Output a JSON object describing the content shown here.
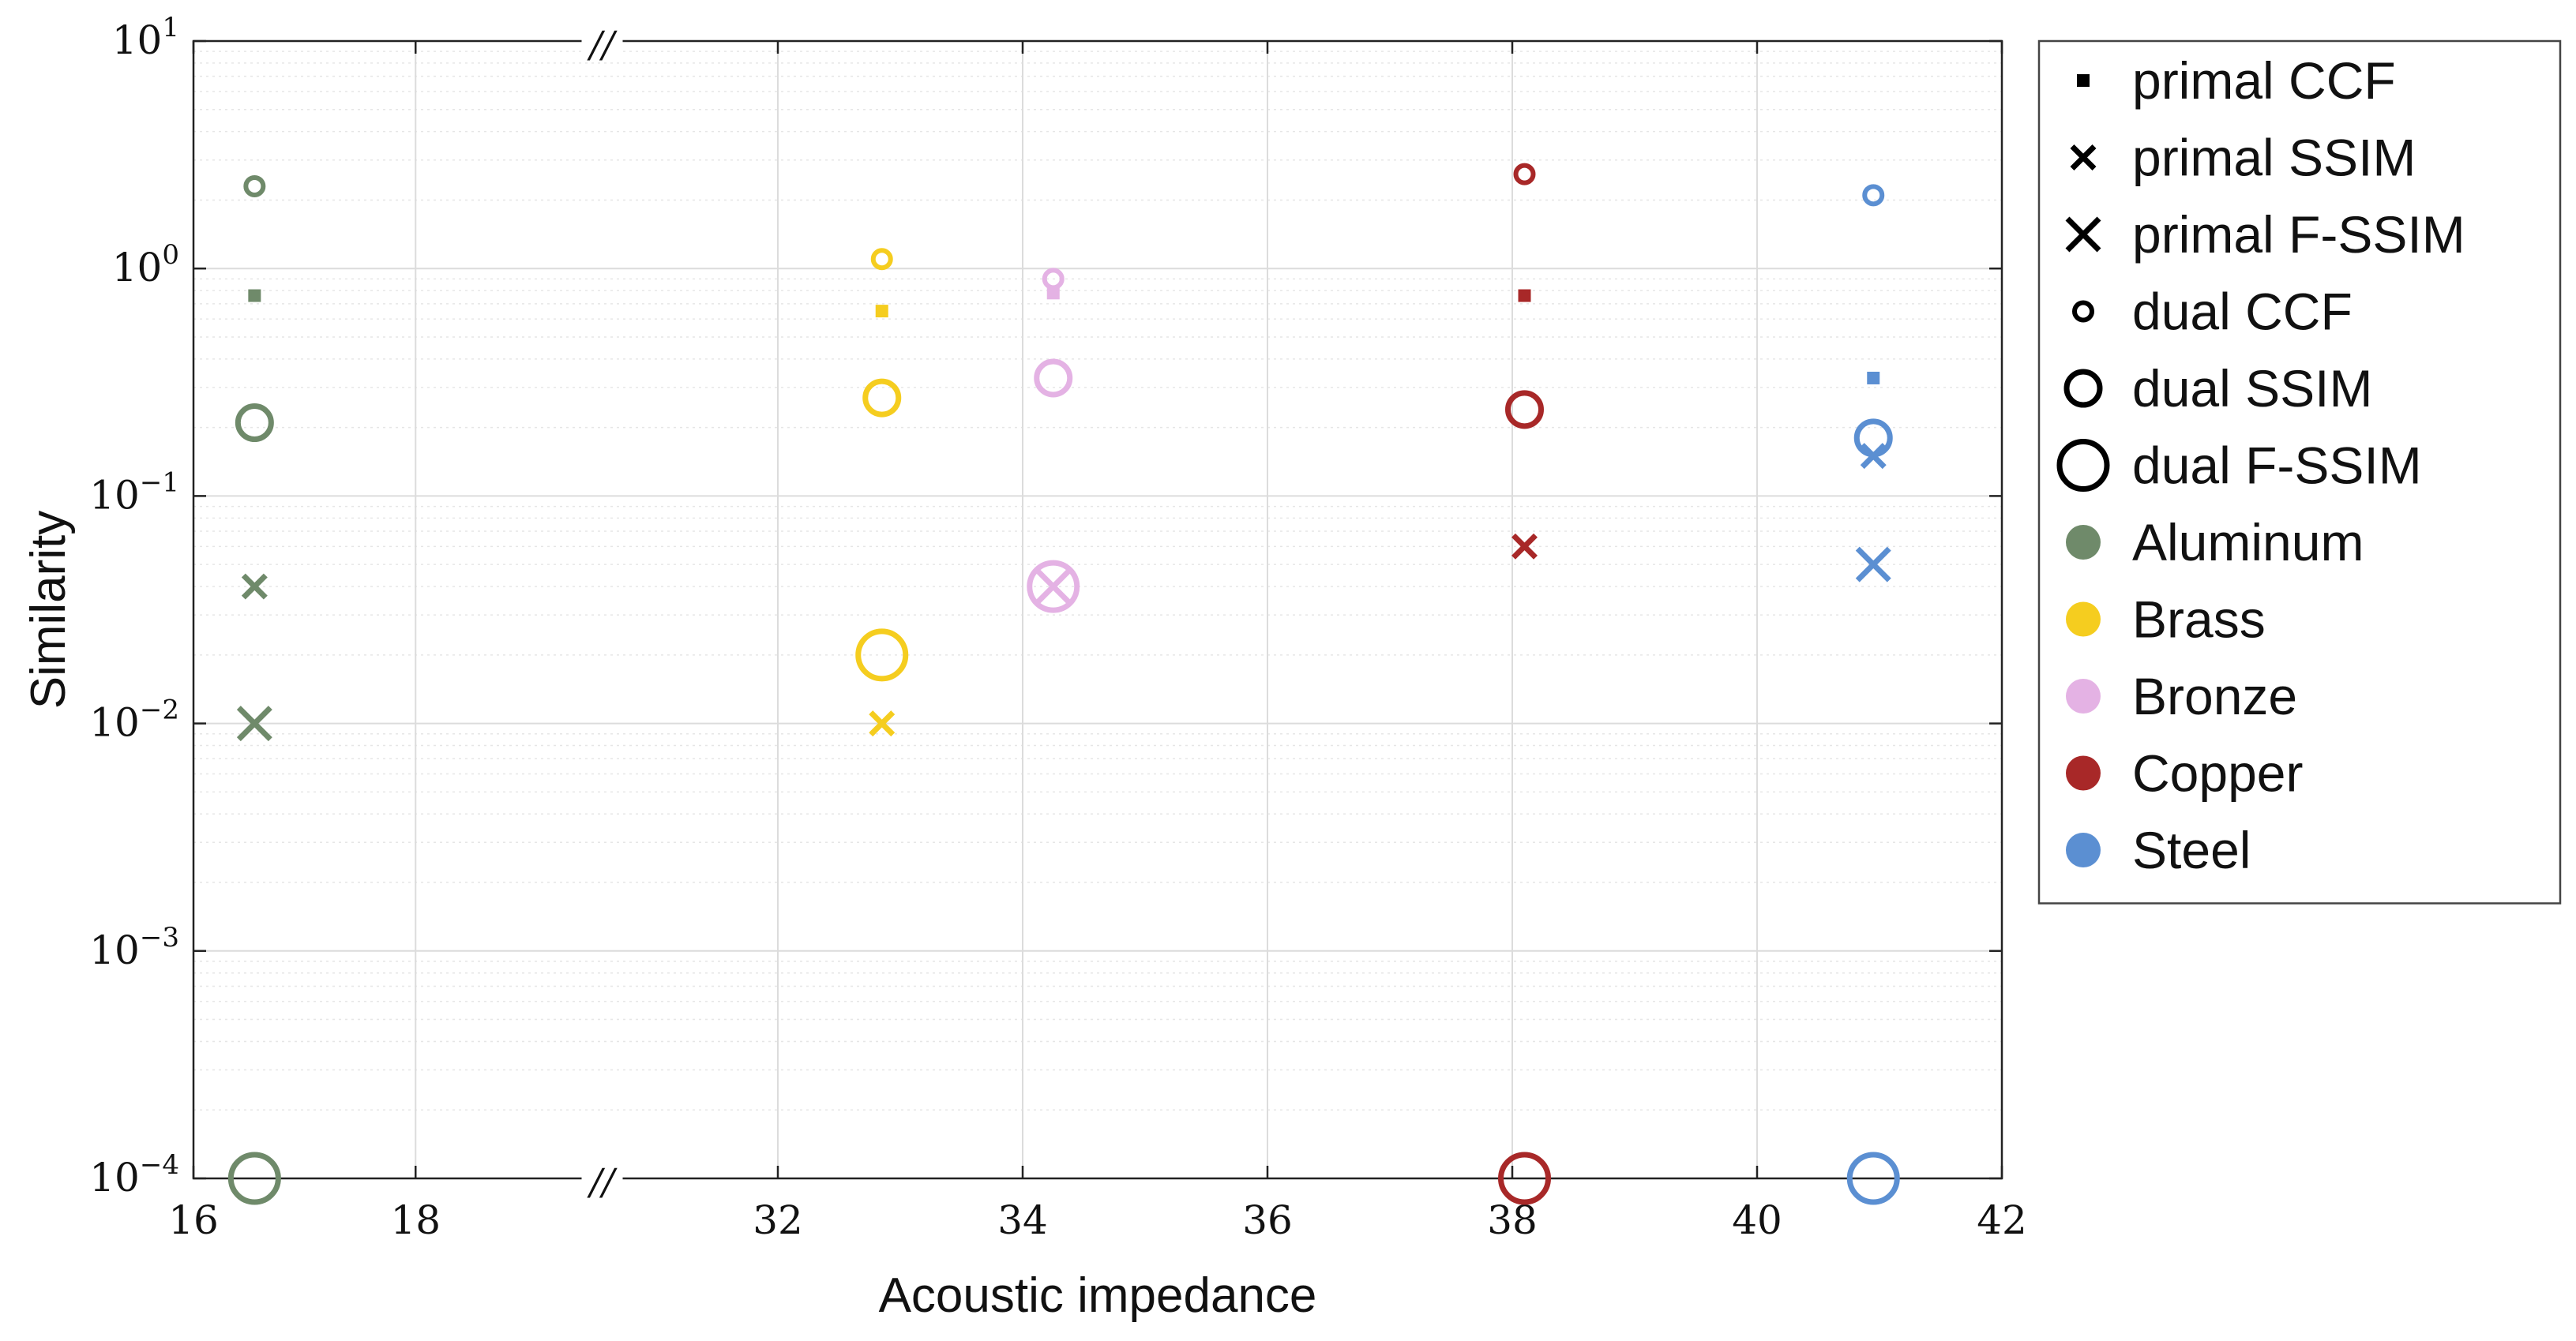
{
  "chart_data": {
    "type": "scatter",
    "xlabel": "Acoustic impedance",
    "ylabel": "Similarity",
    "x_scale": "broken-linear",
    "y_scale": "log",
    "xlim": [
      16,
      42
    ],
    "x_break": [
      19.2,
      31
    ],
    "ylim": [
      0.0001,
      10
    ],
    "x_ticks": [
      16,
      18,
      32,
      34,
      36,
      38,
      40,
      42
    ],
    "x_tick_labels": [
      "16",
      "18",
      "32",
      "34",
      "36",
      "38",
      "40",
      "42"
    ],
    "y_ticks": [
      {
        "value": 0.0001,
        "base": "10",
        "exp": "−4"
      },
      {
        "value": 0.001,
        "base": "10",
        "exp": "−3"
      },
      {
        "value": 0.01,
        "base": "10",
        "exp": "−2"
      },
      {
        "value": 0.1,
        "base": "10",
        "exp": "−1"
      },
      {
        "value": 1,
        "base": "10",
        "exp": "0"
      },
      {
        "value": 10,
        "base": "10",
        "exp": "1"
      }
    ],
    "break_marker": "//",
    "grid": true,
    "legend_position": "outside-right",
    "metrics": [
      {
        "key": "primal_ccf",
        "label": "primal CCF",
        "marker": "square-small"
      },
      {
        "key": "primal_ssim",
        "label": "primal SSIM",
        "marker": "x-small"
      },
      {
        "key": "primal_fssim",
        "label": "primal F-SSIM",
        "marker": "x-large"
      },
      {
        "key": "dual_ccf",
        "label": "dual CCF",
        "marker": "circle-small"
      },
      {
        "key": "dual_ssim",
        "label": "dual SSIM",
        "marker": "circle-medium"
      },
      {
        "key": "dual_fssim",
        "label": "dual F-SSIM",
        "marker": "circle-large"
      }
    ],
    "materials": [
      {
        "name": "Aluminum",
        "color": "#6f8a6a"
      },
      {
        "name": "Brass",
        "color": "#f5cd1f"
      },
      {
        "name": "Bronze",
        "color": "#e4b2e4"
      },
      {
        "name": "Copper",
        "color": "#a82828"
      },
      {
        "name": "Steel",
        "color": "#5b8fd2"
      }
    ],
    "points": [
      {
        "material": "Aluminum",
        "x": 16.55,
        "dual_ccf": 2.3,
        "primal_ccf": 0.76,
        "dual_ssim": 0.21,
        "primal_ssim": 0.04,
        "primal_fssim": 0.01,
        "dual_fssim": 0.0001
      },
      {
        "material": "Brass",
        "x": 32.85,
        "dual_ccf": 1.1,
        "primal_ccf": 0.65,
        "dual_ssim": 0.27,
        "dual_fssim": 0.02,
        "primal_ssim": 0.01
      },
      {
        "material": "Bronze",
        "x": 34.25,
        "dual_ccf": 0.9,
        "primal_ccf": 0.78,
        "dual_ssim": 0.33,
        "primal_fssim": 0.04,
        "dual_fssim": 0.04
      },
      {
        "material": "Copper",
        "x": 38.1,
        "dual_ccf": 2.6,
        "primal_ccf": 0.76,
        "dual_ssim": 0.24,
        "primal_ssim": 0.06,
        "dual_fssim": 0.0001
      },
      {
        "material": "Steel",
        "x": 40.95,
        "dual_ccf": 2.1,
        "primal_ccf": 0.33,
        "dual_ssim": 0.18,
        "primal_ssim": 0.15,
        "primal_fssim": 0.05,
        "dual_fssim": 0.0001
      }
    ]
  }
}
